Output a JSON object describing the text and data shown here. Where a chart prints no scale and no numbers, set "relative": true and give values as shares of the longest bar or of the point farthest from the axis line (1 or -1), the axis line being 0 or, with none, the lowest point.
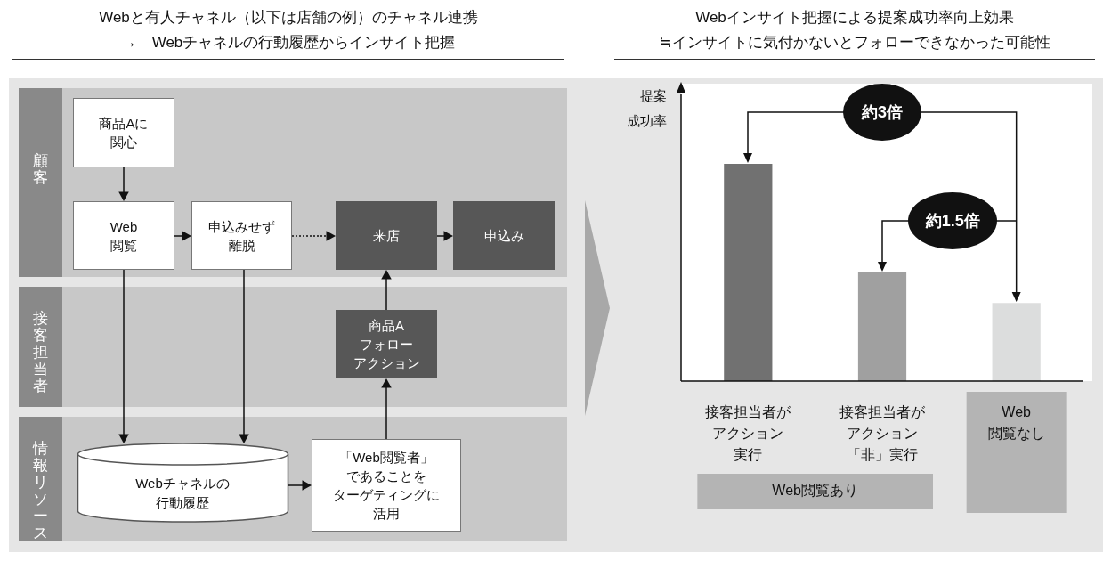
{
  "chart_data": [
    {
      "type": "other",
      "title": "Webと有人チャネル（以下は店舗の例）のチャネル連携",
      "subtitle": "→　Webチャネルの行動履歴からインサイト把握",
      "annotations": [
        "顧客",
        "接客担当者",
        "情報リソース",
        "商品Aに関心",
        "Web閲覧",
        "申込みせず離脱",
        "来店",
        "申込み",
        "商品Aフォローアクション",
        "Webチャネルの行動履歴",
        "「Web閲覧者」であることをターゲティングに活用"
      ]
    },
    {
      "type": "bar",
      "title": "Webインサイト把握による提案成功率向上効果",
      "subtitle": "≒インサイトに気付かないとフォローできなかった可能性",
      "ylabel": "提案成功率",
      "relative": true,
      "categories": [
        "接客担当者がアクション実行",
        "接客担当者がアクション「非」実行",
        "Web閲覧なし"
      ],
      "values": [
        1,
        0.5,
        0.36
      ],
      "colors": [
        "#717171",
        "#a0a0a0",
        "#dcdddd"
      ],
      "annotations": [
        "約3倍",
        "約1.5倍",
        "Web閲覧あり"
      ]
    }
  ]
}
